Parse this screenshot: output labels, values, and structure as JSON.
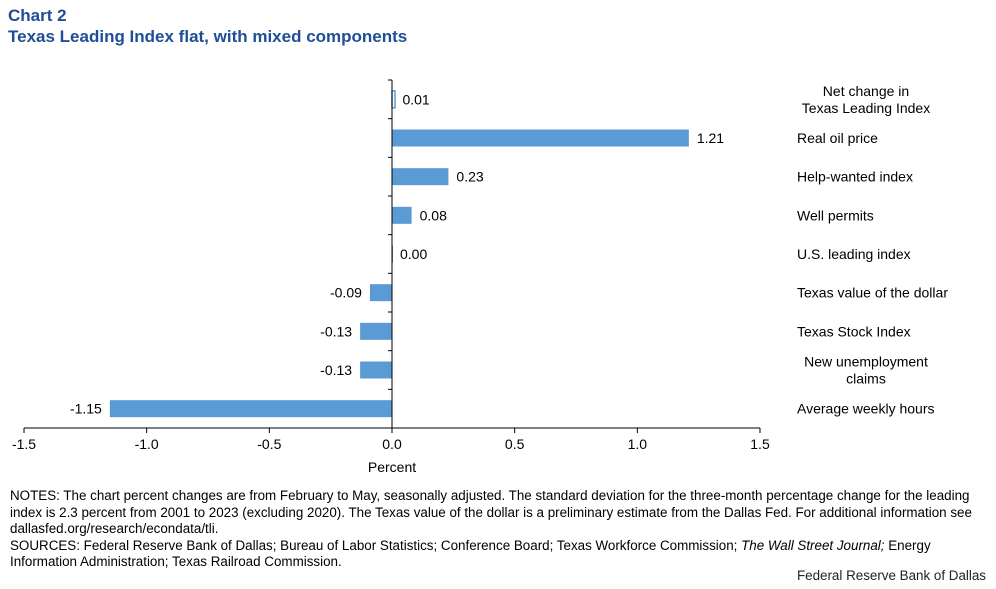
{
  "header": {
    "chart_number": "Chart 2",
    "title": "Texas Leading Index flat, with mixed components"
  },
  "chart_data": {
    "type": "bar",
    "orientation": "horizontal",
    "title": "Texas Leading Index flat, with mixed components",
    "xlabel": "Percent",
    "xlim": [
      -1.5,
      1.5
    ],
    "xticks": [
      -1.5,
      -1.0,
      -0.5,
      0.0,
      0.5,
      1.0,
      1.5
    ],
    "xtick_labels": [
      "-1.5",
      "-1.0",
      "-0.5",
      "0.0",
      "0.5",
      "1.0",
      "1.5"
    ],
    "bar_color": "#5b9bd5",
    "categories": [
      [
        "Net change in",
        "Texas Leading Index"
      ],
      [
        "Real oil price"
      ],
      [
        "Help-wanted index"
      ],
      [
        "Well permits"
      ],
      [
        "U.S. leading index"
      ],
      [
        "Texas value of the dollar"
      ],
      [
        "Texas Stock Index"
      ],
      [
        "New unemployment",
        "claims"
      ],
      [
        "Average weekly hours"
      ]
    ],
    "values": [
      0.01,
      1.21,
      0.23,
      0.08,
      0.0,
      -0.09,
      -0.13,
      -0.13,
      -1.15
    ],
    "data_labels": [
      "0.01",
      "1.21",
      "0.23",
      "0.08",
      "0.00",
      "-0.09",
      "-0.13",
      "-0.13",
      "-1.15"
    ],
    "highlight_first": true,
    "grid": false
  },
  "notes": {
    "line1": "NOTES: The chart percent changes are from February to May, seasonally adjusted. The standard deviation for the three-month percentage change for the leading index is 2.3 percent from 2001 to 2023 (excluding 2020). The Texas value of the dollar is a preliminary estimate from the Dallas Fed. For additional information see dallasfed.org/research/econdata/tli.",
    "sources_prefix": "SOURCES: Federal Reserve Bank of Dallas; Bureau of Labor Statistics; Conference Board; Texas Workforce Commission; ",
    "sources_italic": "The Wall Street Journal;",
    "sources_suffix": " Energy Information Administration; Texas Railroad Commission."
  },
  "credit": "Federal Reserve Bank of Dallas"
}
